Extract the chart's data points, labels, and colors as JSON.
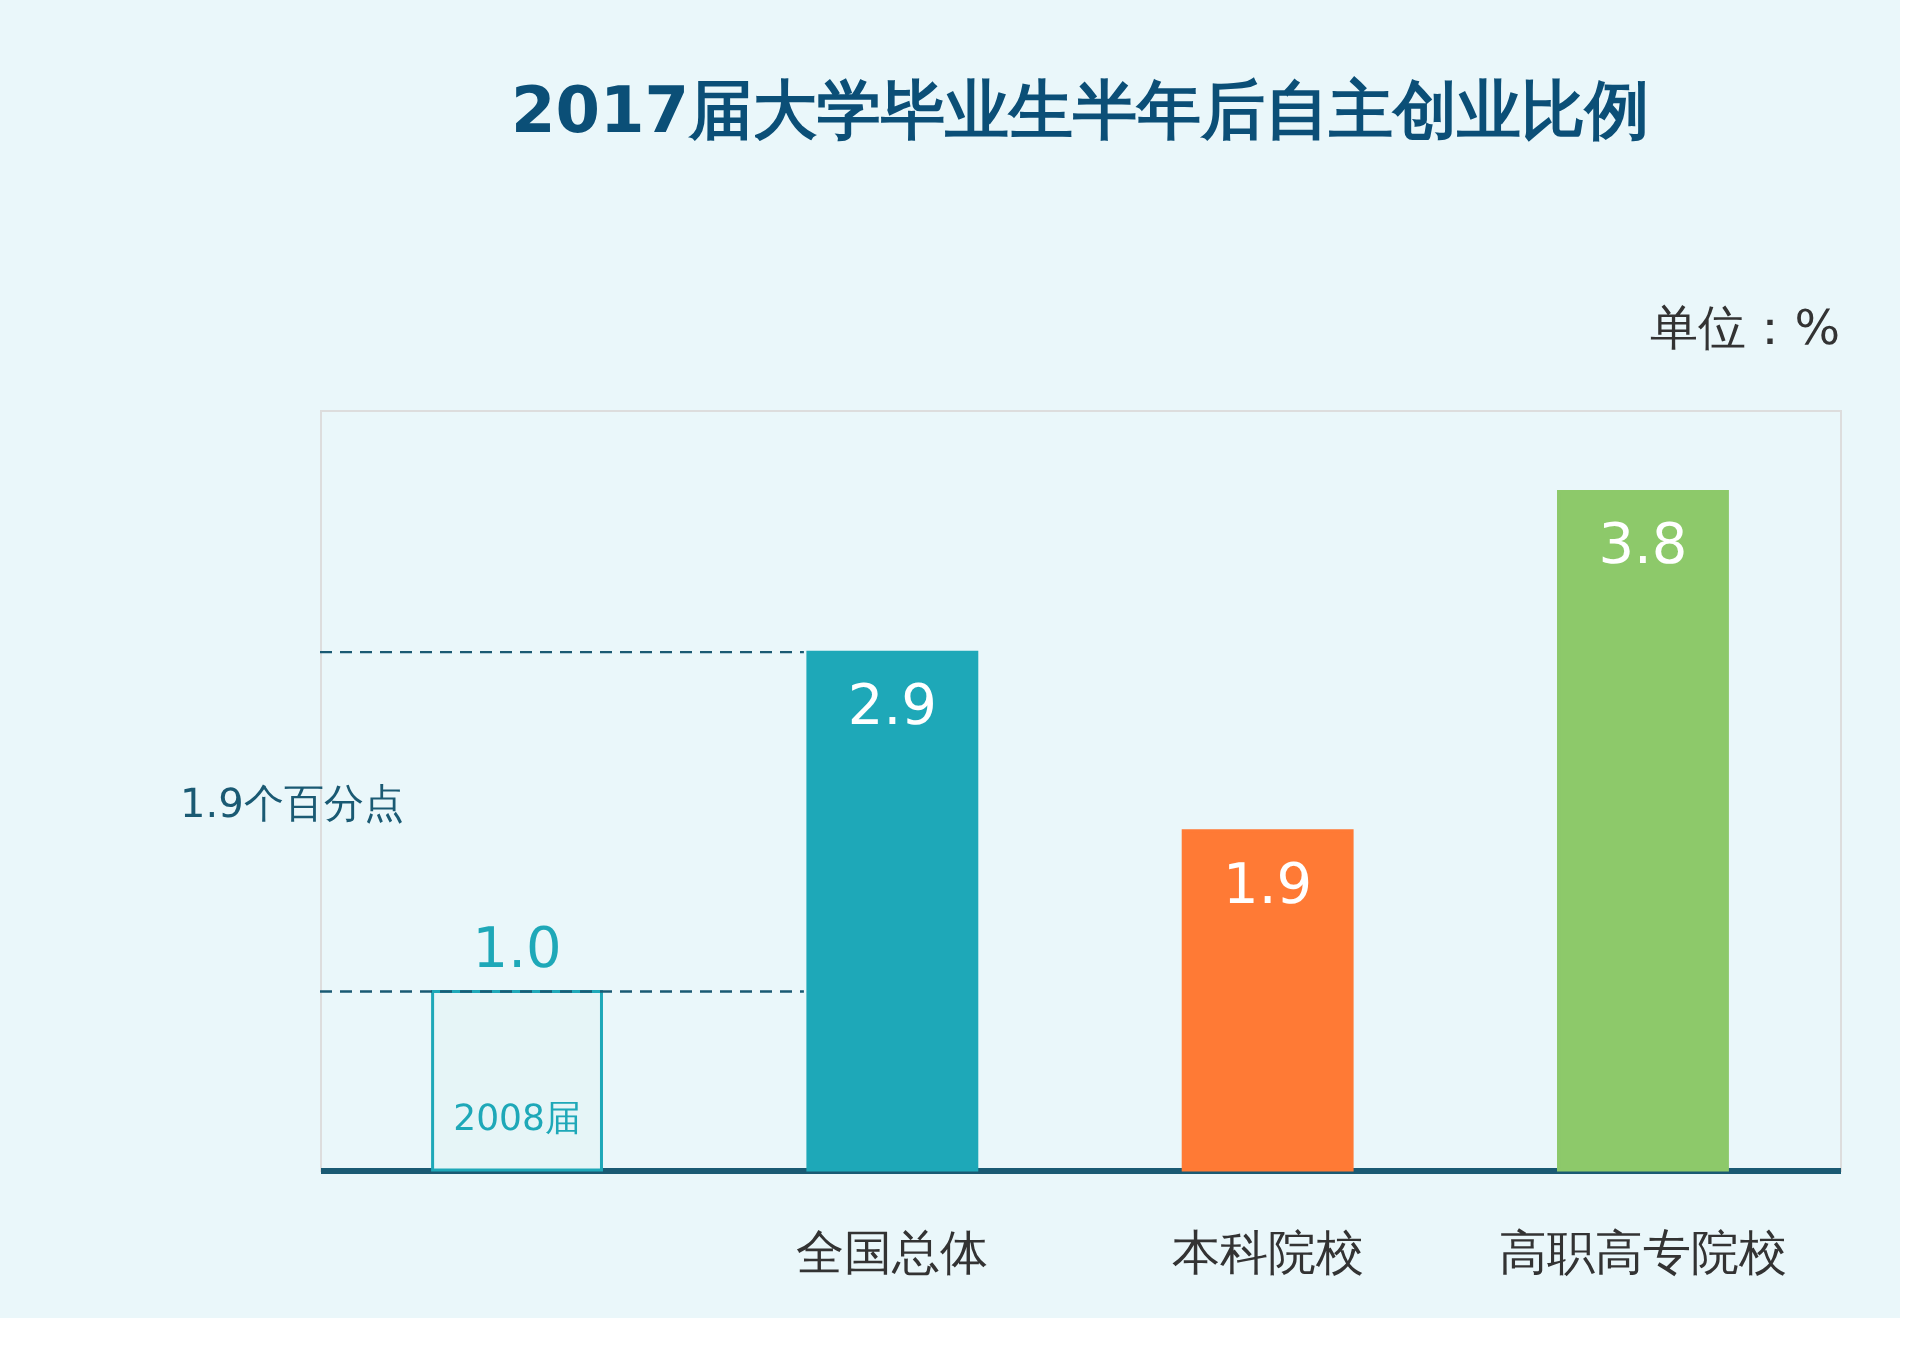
{
  "chart_data": {
    "type": "bar",
    "title": "2017届大学毕业生半年后自主创业比例",
    "categories": [
      null,
      "全国总体",
      "本科院校",
      "高职高专院校"
    ],
    "values": [
      1.0,
      2.9,
      1.9,
      3.8
    ],
    "value_labels": [
      "1.0",
      "2.9",
      "1.9",
      "3.8"
    ],
    "colors": [
      "#e6f5f7",
      "#1ea8b8",
      "#ff7a35",
      "#8dc96a"
    ],
    "tick_labels": "x",
    "grid": false,
    "ref_lines": [
      {
        "axis": "y",
        "value": 1.0,
        "line_style": "dashed"
      },
      {
        "axis": "y",
        "value": 2.9,
        "line_style": "dashed"
      }
    ],
    "annotations": [
      "单位：%",
      "1.9个百分点",
      "2008届"
    ]
  }
}
